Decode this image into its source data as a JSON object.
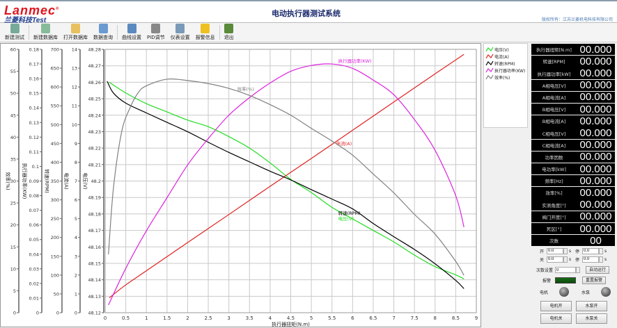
{
  "header": {
    "logo_text": "Lanmec",
    "logo_sub": "兰菱科技Test",
    "title": "电动执行器测试系统",
    "copyright": "版权所有：江苏兰菱机电科技有限公司"
  },
  "toolbar": [
    {
      "label": "新建测试",
      "icon": "new-test-icon",
      "color": "#7a9"
    },
    {
      "label": "新建数据库",
      "icon": "new-database-icon",
      "color": "#8b9"
    },
    {
      "label": "打开数据库",
      "icon": "open-database-icon",
      "color": "#e8c060"
    },
    {
      "label": "数据查询",
      "icon": "data-query-icon",
      "color": "#6a9ad0"
    },
    {
      "label": "曲线设置",
      "icon": "curve-settings-icon",
      "color": "#5a8ac0"
    },
    {
      "label": "PID调节",
      "icon": "pid-icon",
      "color": "#888"
    },
    {
      "label": "仪表设置",
      "icon": "meter-settings-icon",
      "color": "#7a9ab8"
    },
    {
      "label": "报警信息",
      "icon": "warning-icon",
      "color": "#f0c020"
    },
    {
      "label": "退出",
      "icon": "exit-icon",
      "color": "#5a8a3a"
    }
  ],
  "watermark": "江苏兰菱机电科技有限公司",
  "chart_data": {
    "type": "line",
    "xlabel": "执行器扭矩(N.m)",
    "xlim": [
      0,
      9
    ],
    "xticks": [
      "0",
      "0.5",
      "1",
      "1.5",
      "2",
      "2.5",
      "3",
      "3.5",
      "4",
      "4.5",
      "5",
      "5.5",
      "6",
      "6.5",
      "7",
      "7.5",
      "8",
      "8.5",
      "9"
    ],
    "grid": true,
    "legend": "right",
    "axes": [
      {
        "label": "效率(%)",
        "ylim": [
          0,
          60
        ],
        "ticks": [
          "0",
          "5",
          "10",
          "15",
          "20",
          "25",
          "30",
          "35",
          "40",
          "45",
          "50",
          "55",
          "60"
        ]
      },
      {
        "label": "执行器功率(KW)",
        "ylim": [
          0,
          0.18
        ],
        "ticks": [
          "0",
          "0.01",
          "0.02",
          "0.03",
          "0.04",
          "0.05",
          "0.06",
          "0.07",
          "0.08",
          "0.09",
          "0.1",
          "0.11",
          "0.12",
          "0.13",
          "0.14",
          "0.15",
          "0.16",
          "0.17",
          "0.18"
        ]
      },
      {
        "label": "转速(RPM)",
        "ylim": [
          0,
          700
        ],
        "ticks": [
          "0",
          "50",
          "100",
          "150",
          "200",
          "250",
          "300",
          "350",
          "400",
          "450",
          "500",
          "550",
          "600",
          "650",
          "700"
        ]
      },
      {
        "label": "电流(A)",
        "ylim": [
          0,
          14
        ],
        "ticks": [
          "0",
          "1",
          "2",
          "3",
          "4",
          "5",
          "6",
          "7",
          "8",
          "9",
          "10",
          "11",
          "12",
          "13",
          "14"
        ]
      },
      {
        "label": "电压(V)",
        "ylim": [
          48.12,
          48.28
        ],
        "ticks": [
          "48.12",
          "48.13",
          "48.14",
          "48.15",
          "48.16",
          "48.17",
          "48.18",
          "48.19",
          "48.2",
          "48.21",
          "48.22",
          "48.23",
          "48.24",
          "48.25",
          "48.26",
          "48.27",
          "48.28"
        ]
      }
    ],
    "series": [
      {
        "name": "电压(V)",
        "axis": 4,
        "color": "#22dd22",
        "label_at": [
          5.65,
          48.18
        ],
        "x": [
          0.1,
          0.5,
          1,
          1.5,
          2,
          2.5,
          3,
          3.5,
          4,
          4.5,
          5,
          5.5,
          6,
          6.5,
          7,
          7.5,
          8,
          8.5,
          8.7
        ],
        "y": [
          48.26,
          48.2535,
          48.247,
          48.242,
          48.237,
          48.233,
          48.227,
          48.22,
          48.211,
          48.201,
          48.193,
          48.184,
          48.177,
          48.17,
          48.163,
          48.155,
          48.148,
          48.143,
          48.1405
        ]
      },
      {
        "name": "电流(A)",
        "axis": 3,
        "color": "#e02020",
        "label_at": [
          5.6,
          8.9
        ],
        "x": [
          0.1,
          0.5,
          1,
          2,
          3,
          4,
          5,
          6,
          7,
          8,
          8.7
        ],
        "y": [
          0.79,
          1.48,
          2.23,
          3.73,
          5.22,
          6.72,
          8.2,
          9.7,
          11.2,
          12.7,
          13.73
        ]
      },
      {
        "name": "转速(RPM)",
        "axis": 2,
        "color": "#000000",
        "label_at": [
          5.65,
          255
        ],
        "x": [
          0.05,
          0.2,
          0.5,
          1,
          1.5,
          2,
          2.5,
          3,
          3.5,
          4,
          4.5,
          5,
          5.5,
          6,
          6.5,
          7,
          7.5,
          8,
          8.5,
          8.7
        ],
        "y": [
          615,
          584,
          557,
          531,
          506,
          481,
          453,
          426,
          401,
          376,
          353,
          327,
          302,
          276,
          237,
          202,
          168,
          130,
          86,
          64
        ]
      },
      {
        "name": "执行器功率(KW)",
        "axis": 1,
        "color": "#dd22dd",
        "label_at": [
          5.65,
          0.171
        ],
        "x": [
          0.08,
          0.5,
          1,
          1.5,
          2,
          2.5,
          3,
          3.5,
          4,
          4.5,
          5,
          5.5,
          6,
          6.5,
          7,
          7.5,
          8,
          8.5,
          8.7
        ],
        "y": [
          0.0053,
          0.0303,
          0.056,
          0.0786,
          0.101,
          0.119,
          0.135,
          0.147,
          0.157,
          0.165,
          0.169,
          0.17,
          0.167,
          0.159,
          0.149,
          0.132,
          0.111,
          0.08,
          0.0585
        ]
      },
      {
        "name": "效率(%)",
        "axis": 0,
        "color": "#808080",
        "label_at": [
          3.2,
          50.6
        ],
        "x": [
          0.08,
          0.2,
          0.4,
          0.6,
          0.8,
          1,
          1.5,
          2,
          2.5,
          3,
          3.5,
          4,
          4.5,
          5,
          5.5,
          6,
          6.5,
          7,
          7.5,
          8,
          8.5,
          8.7
        ],
        "y": [
          13.3,
          28.3,
          41.2,
          46.6,
          50.1,
          51.7,
          53.2,
          52.9,
          52.2,
          51.1,
          49.5,
          47.4,
          45.0,
          42.0,
          39.1,
          35.9,
          31.6,
          27.3,
          22.4,
          17.9,
          11.7,
          8.5
        ]
      }
    ]
  },
  "readouts": [
    {
      "label": "执行器扭矩[N.m]",
      "value": "00.000"
    },
    {
      "label": "转速[RPM]",
      "value": "00.000"
    },
    {
      "label": "执行器功率[kW]",
      "value": "00.000"
    },
    {
      "label": "A相电压[V]",
      "value": "00.000"
    },
    {
      "label": "A相电流[A]",
      "value": "00.000"
    },
    {
      "label": "B相电压[V]",
      "value": "00.000"
    },
    {
      "label": "B相电流[A]",
      "value": "00.000"
    },
    {
      "label": "C相电压[V]",
      "value": "00.000"
    },
    {
      "label": "C相电流[A]",
      "value": "00.000"
    },
    {
      "label": "功率因数",
      "value": "00.000"
    },
    {
      "label": "电功率[kW]",
      "value": "00.000"
    },
    {
      "label": "频率[Hz]",
      "value": "00.000"
    },
    {
      "label": "效率[%]",
      "value": "00.000"
    },
    {
      "label": "实测角度[°]",
      "value": "00.000"
    },
    {
      "label": "阀门开度[°]",
      "value": "00.000"
    },
    {
      "label": "死区[°]",
      "value": "00.000"
    },
    {
      "label": "次数",
      "value": "00"
    }
  ],
  "controls": {
    "open_label": "开",
    "close_label": "关",
    "stop_label": "停",
    "unit": "s",
    "open_value": "0.0",
    "open_stop_value": "0.0",
    "close_value": "0.0",
    "close_stop_value": "0.0",
    "count_label": "次数设置",
    "count_value": "0",
    "auto_run": "自动运行",
    "alarm_label": "报警",
    "reset_alarm": "重置报警",
    "alarm_color": "#1a6a1a",
    "motor_label": "电机",
    "pump_label": "水泵",
    "motor_on": "电机开",
    "pump_on": "水泵开",
    "motor_off": "电机关",
    "pump_off": "水泵关"
  }
}
